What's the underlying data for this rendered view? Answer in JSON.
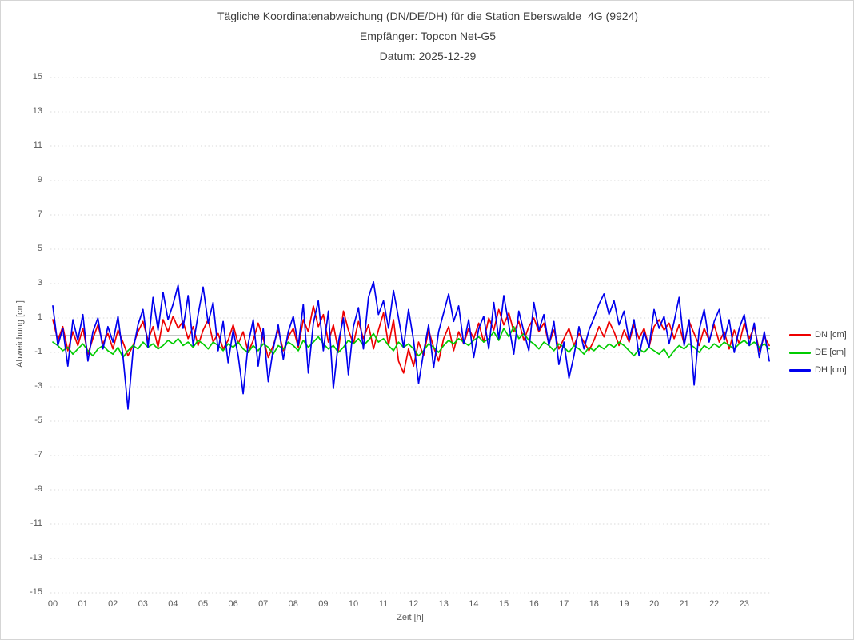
{
  "title": {
    "line1": "Tägliche Koordinatenabweichung (DN/DE/DH) für die Station Eberswalde_4G (9924)",
    "line2": "Empfänger: Topcon Net-G5",
    "line3": "Datum: 2025-12-29"
  },
  "style": {
    "background": "#ffffff",
    "border_color": "#d5d5d5",
    "grid_color": "#d9d9d9",
    "zero_line_color": "#c6c6c6",
    "tick_text_color": "#595959",
    "title_text_color": "#3f3f3f"
  },
  "chart_data": {
    "type": "line",
    "title": "Tägliche Koordinatenabweichung (DN/DE/DH) für die Station Eberswalde_4G (9924) — Empfänger: Topcon Net-G5 — Datum: 2025-12-29",
    "xlabel": "Zeit [h]",
    "ylabel": "Abweichung [cm]",
    "ylim": [
      -15,
      15
    ],
    "xlim_hours": [
      0,
      24
    ],
    "grid": "horizontal-dotted",
    "zero_line": true,
    "legend_position": "right",
    "y_ticks": [
      15,
      13,
      11,
      9,
      7,
      5,
      3,
      1,
      -1,
      -3,
      -5,
      -7,
      -9,
      -11,
      -13,
      -15
    ],
    "x_ticks": [
      "00",
      "01",
      "02",
      "03",
      "04",
      "05",
      "06",
      "07",
      "08",
      "09",
      "10",
      "11",
      "12",
      "13",
      "14",
      "15",
      "16",
      "17",
      "18",
      "19",
      "20",
      "21",
      "22",
      "23"
    ],
    "sample_interval_minutes": 10,
    "series": [
      {
        "name": "DN",
        "label": "DN [cm]",
        "color": "#ee0000",
        "values": [
          0.9,
          -0.3,
          0.5,
          -0.9,
          0.2,
          -0.6,
          0.4,
          -1.1,
          -0.2,
          0.6,
          -0.5,
          0.1,
          -0.8,
          0.3,
          -0.4,
          -1.2,
          -0.6,
          0.2,
          0.8,
          -0.3,
          0.5,
          -0.7,
          0.9,
          0.2,
          1.1,
          0.4,
          0.8,
          -0.2,
          0.5,
          -0.6,
          0.3,
          0.9,
          -0.4,
          0.1,
          -0.8,
          -0.3,
          0.6,
          -0.5,
          0.2,
          -1.0,
          -0.3,
          0.7,
          -0.2,
          -1.3,
          -0.6,
          0.3,
          -0.9,
          -0.1,
          0.4,
          -0.7,
          0.9,
          0.2,
          1.7,
          0.5,
          1.2,
          -0.4,
          0.6,
          -0.9,
          1.4,
          0.3,
          -0.5,
          0.8,
          -0.2,
          0.6,
          -0.8,
          0.3,
          1.3,
          -0.6,
          0.9,
          -1.5,
          -2.2,
          -0.8,
          -1.8,
          -0.4,
          -1.2,
          0.3,
          -0.7,
          -1.5,
          -0.2,
          0.5,
          -0.9,
          0.2,
          -0.5,
          0.4,
          -0.2,
          0.7,
          -0.4,
          1.0,
          0.3,
          1.5,
          0.6,
          1.3,
          0.2,
          0.8,
          -0.3,
          0.5,
          1.0,
          0.2,
          0.7,
          -0.5,
          0.3,
          -0.8,
          -0.2,
          0.4,
          -0.6,
          0.1,
          -0.4,
          -0.9,
          -0.3,
          0.5,
          -0.1,
          0.8,
          0.2,
          -0.6,
          0.3,
          -0.4,
          0.6,
          -0.2,
          0.4,
          -0.7,
          0.5,
          0.9,
          0.3,
          0.7,
          -0.2,
          0.6,
          -0.5,
          0.8,
          0.1,
          -0.6,
          0.4,
          -0.3,
          0.6,
          -0.4,
          0.2,
          -0.8,
          0.3,
          -0.5,
          0.7,
          -0.2,
          0.5,
          -0.9,
          -0.1,
          -0.6
        ]
      },
      {
        "name": "DE",
        "label": "DE [cm]",
        "color": "#00cc00",
        "values": [
          -0.4,
          -0.6,
          -0.9,
          -0.7,
          -1.1,
          -0.8,
          -0.5,
          -0.9,
          -1.2,
          -0.8,
          -0.6,
          -0.9,
          -1.1,
          -0.7,
          -1.3,
          -0.9,
          -0.6,
          -0.8,
          -0.4,
          -0.7,
          -0.5,
          -0.8,
          -0.6,
          -0.3,
          -0.5,
          -0.2,
          -0.6,
          -0.4,
          -0.7,
          -0.3,
          -0.5,
          -0.8,
          -0.4,
          -0.6,
          -0.9,
          -0.5,
          -0.7,
          -0.4,
          -0.8,
          -1.0,
          -0.6,
          -0.9,
          -0.5,
          -0.7,
          -1.1,
          -0.6,
          -0.8,
          -0.4,
          -0.6,
          -0.9,
          -0.3,
          -0.7,
          -0.4,
          -0.1,
          -0.5,
          -0.8,
          -0.6,
          -1.0,
          -0.7,
          -0.3,
          -0.5,
          -0.2,
          -0.6,
          -0.3,
          0.1,
          -0.4,
          -0.2,
          -0.6,
          -0.9,
          -0.4,
          -0.7,
          -0.5,
          -0.8,
          -1.2,
          -0.9,
          -0.5,
          -0.7,
          -1.0,
          -0.6,
          -0.3,
          -0.5,
          -0.2,
          -0.4,
          -0.6,
          -0.3,
          -0.1,
          -0.4,
          -0.2,
          0.2,
          -0.3,
          0.4,
          -0.1,
          0.5,
          -0.2,
          0.1,
          -0.3,
          -0.5,
          -0.8,
          -0.4,
          -0.6,
          -0.9,
          -0.5,
          -0.7,
          -1.0,
          -0.6,
          -0.8,
          -1.1,
          -0.7,
          -0.9,
          -0.6,
          -0.8,
          -0.5,
          -0.7,
          -0.4,
          -0.6,
          -0.9,
          -1.2,
          -0.8,
          -1.0,
          -0.7,
          -0.9,
          -1.1,
          -0.8,
          -1.3,
          -0.9,
          -0.6,
          -0.8,
          -0.5,
          -0.7,
          -1.0,
          -0.6,
          -0.8,
          -0.5,
          -0.7,
          -0.4,
          -0.6,
          -0.8,
          -0.5,
          -0.3,
          -0.6,
          -0.4,
          -0.7,
          -0.5,
          -0.8
        ]
      },
      {
        "name": "DH",
        "label": "DH [cm]",
        "color": "#0000ee",
        "values": [
          1.7,
          -0.6,
          0.4,
          -1.8,
          0.9,
          -0.3,
          1.2,
          -1.5,
          0.2,
          1.0,
          -0.8,
          0.5,
          -0.4,
          1.1,
          -1.2,
          -4.3,
          -0.9,
          0.6,
          1.5,
          -0.7,
          2.2,
          0.3,
          2.5,
          0.9,
          1.8,
          2.9,
          0.4,
          2.3,
          -0.6,
          1.2,
          2.8,
          0.7,
          1.9,
          -0.9,
          0.8,
          -1.6,
          0.3,
          -1.2,
          -3.4,
          -0.5,
          0.9,
          -1.8,
          0.4,
          -2.7,
          -0.8,
          0.6,
          -1.4,
          0.2,
          1.1,
          -0.6,
          1.8,
          -2.2,
          0.7,
          2.0,
          -0.9,
          1.4,
          -3.1,
          -0.4,
          1.0,
          -2.3,
          0.5,
          1.6,
          -0.8,
          2.2,
          3.1,
          1.2,
          2.0,
          0.4,
          2.6,
          1.0,
          -0.7,
          1.5,
          -0.3,
          -2.8,
          -1.0,
          0.6,
          -1.9,
          0.2,
          1.3,
          2.4,
          0.8,
          1.7,
          -0.5,
          0.9,
          -1.3,
          0.4,
          1.1,
          -0.8,
          1.9,
          -0.2,
          2.3,
          0.6,
          -1.1,
          1.4,
          0.2,
          -0.9,
          1.9,
          0.3,
          1.2,
          -0.6,
          0.8,
          -1.7,
          -0.4,
          -2.5,
          -1.2,
          0.5,
          -0.8,
          0.3,
          1.0,
          1.8,
          2.4,
          1.2,
          2.0,
          0.6,
          1.4,
          -0.3,
          0.9,
          -1.2,
          0.2,
          -0.7,
          1.5,
          0.4,
          1.1,
          -0.5,
          0.8,
          2.2,
          -0.6,
          0.9,
          -2.9,
          0.3,
          1.5,
          -0.4,
          0.8,
          1.5,
          -0.3,
          0.9,
          -1.0,
          0.4,
          1.2,
          -0.6,
          0.7,
          -1.3,
          0.2,
          -1.5
        ]
      }
    ]
  }
}
